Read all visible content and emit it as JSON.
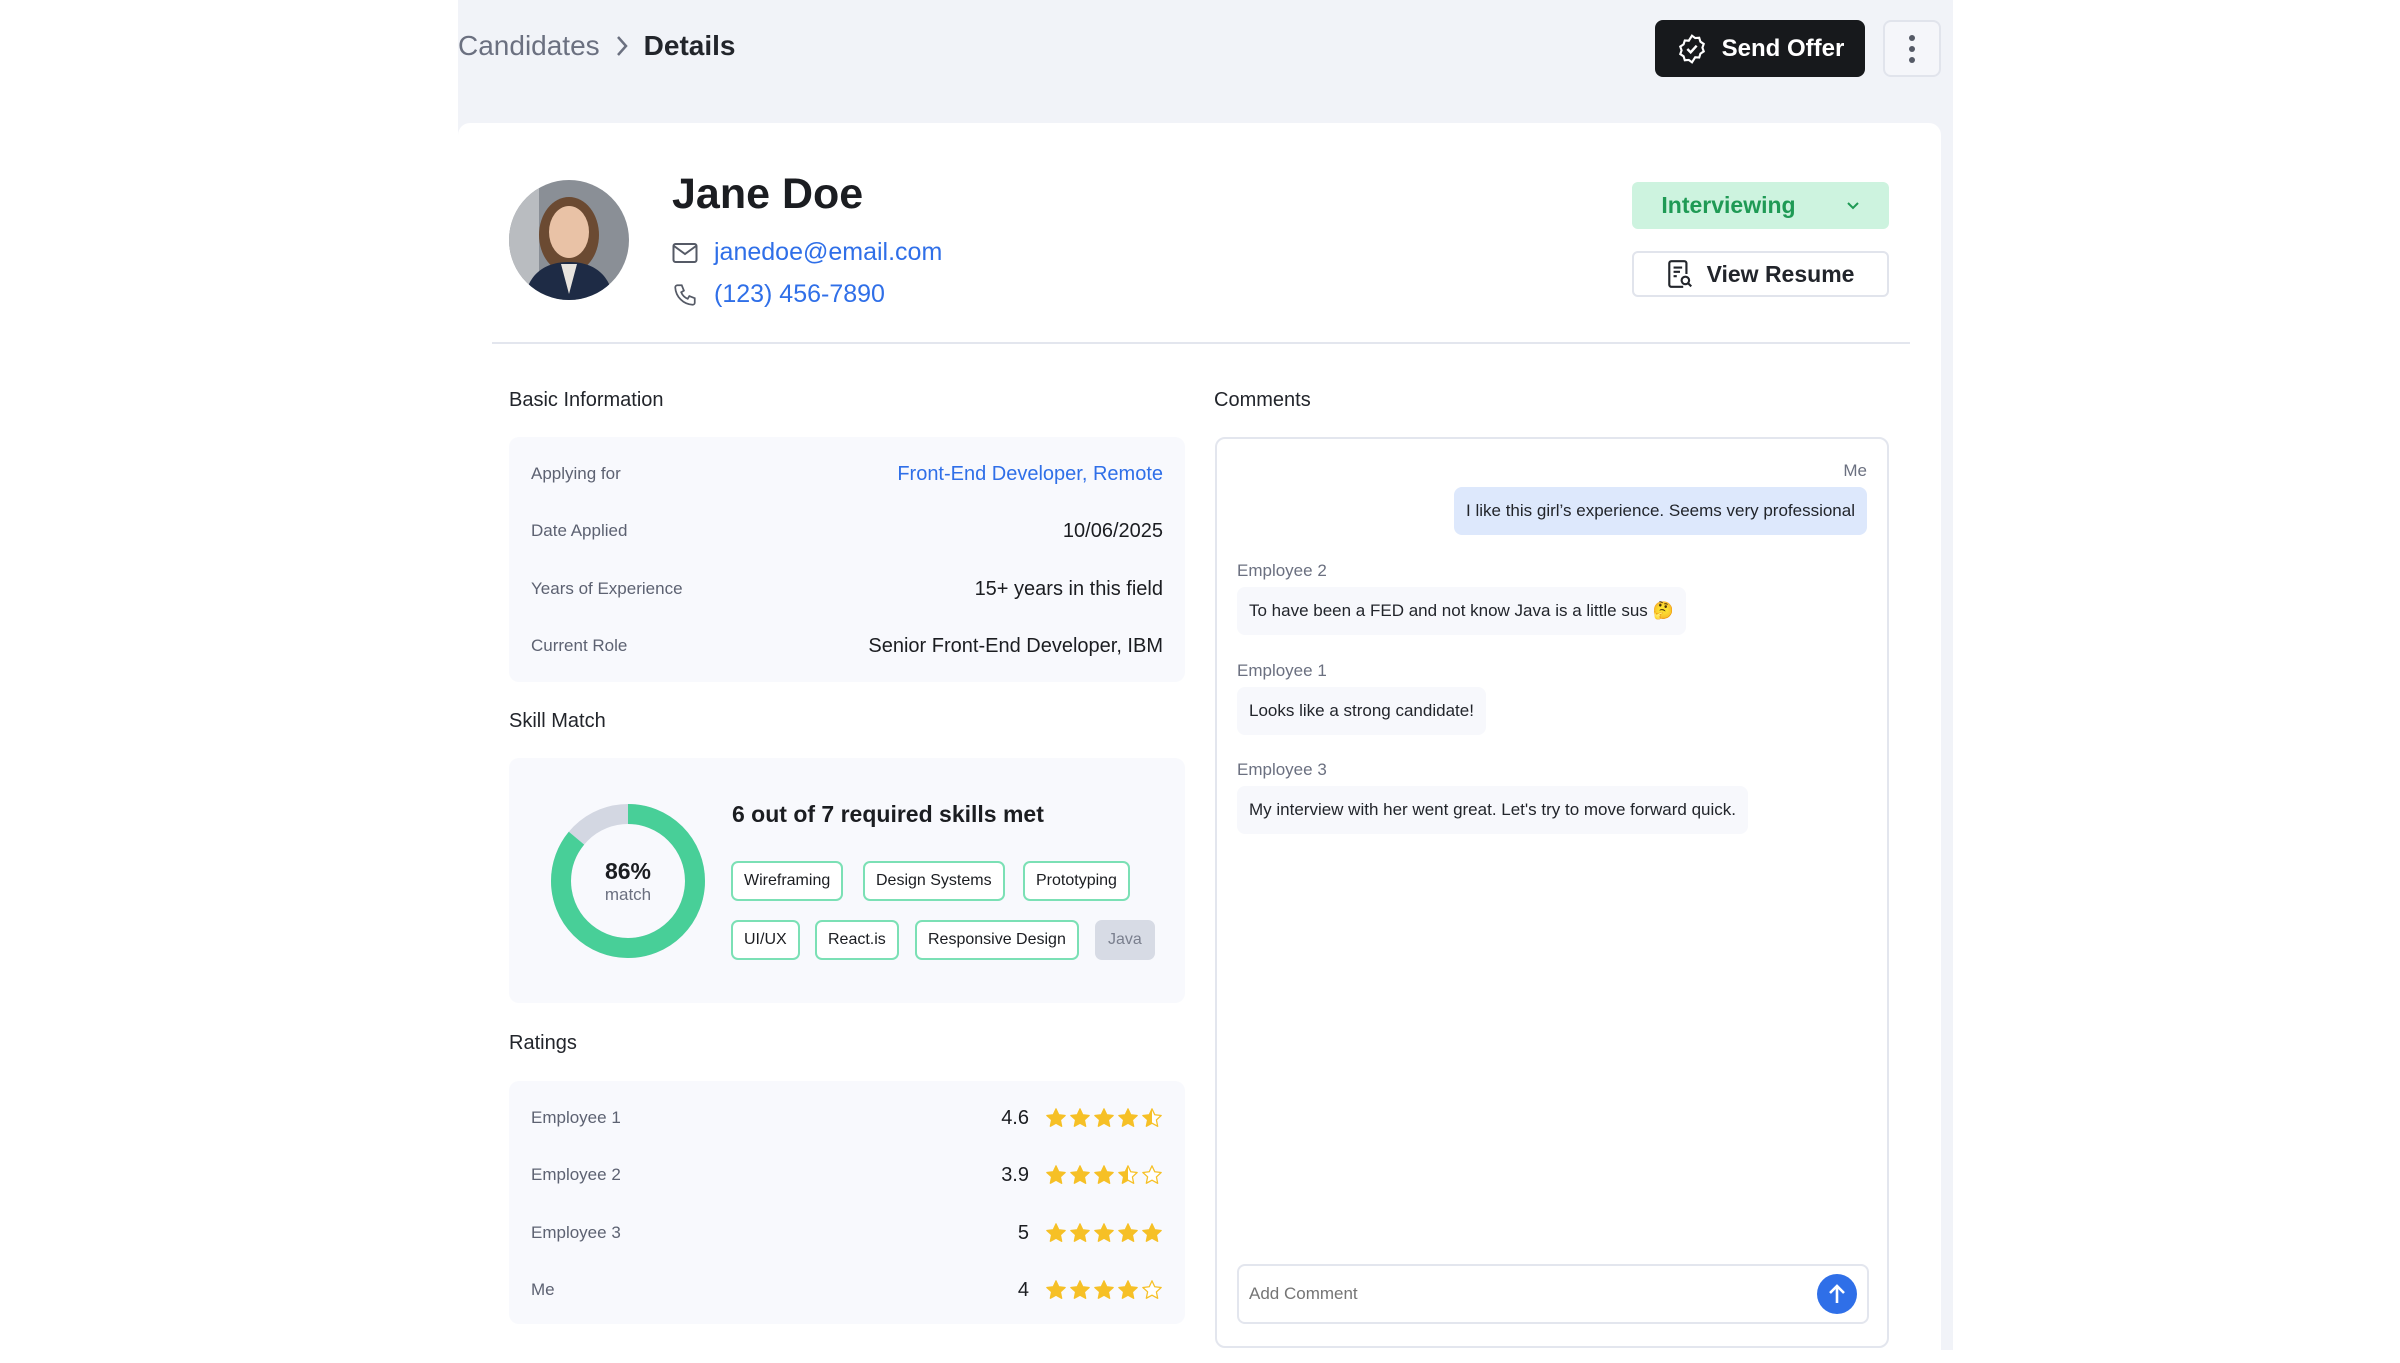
{
  "breadcrumb": {
    "parent": "Candidates",
    "current": "Details"
  },
  "header": {
    "send_offer": "Send Offer",
    "more_icon": "more-vertical-icon"
  },
  "candidate": {
    "name": "Jane Doe",
    "email": "janedoe@email.com",
    "phone": "(123) 456-7890",
    "status": "Interviewing",
    "view_resume": "View Resume"
  },
  "basic_info": {
    "title": "Basic Information",
    "rows": [
      {
        "label": "Applying for",
        "value": "Front-End Developer, Remote"
      },
      {
        "label": "Date Applied",
        "value": "10/06/2025"
      },
      {
        "label": "Years of Experience",
        "value": "15+ years in this field"
      },
      {
        "label": "Current Role",
        "value": "Senior Front-End Developer, IBM"
      }
    ]
  },
  "skill_match": {
    "title": "Skill Match",
    "percent_label": "86%",
    "percent": 86,
    "match_label": "match",
    "summary": "6 out of 7 required skills met",
    "skills": [
      {
        "name": "Wireframing",
        "met": true
      },
      {
        "name": "Design Systems",
        "met": true
      },
      {
        "name": "Prototyping",
        "met": true
      },
      {
        "name": "UI/UX",
        "met": true
      },
      {
        "name": "React.is",
        "met": true
      },
      {
        "name": "Responsive Design",
        "met": true
      },
      {
        "name": "Java",
        "met": false
      }
    ]
  },
  "ratings": {
    "title": "Ratings",
    "rows": [
      {
        "name": "Employee 1",
        "score": "4.6",
        "value": 4.6
      },
      {
        "name": "Employee 2",
        "score": "3.9",
        "value": 3.9
      },
      {
        "name": "Employee 3",
        "score": "5",
        "value": 5
      },
      {
        "name": "Me",
        "score": "4",
        "value": 4
      }
    ]
  },
  "comments": {
    "title": "Comments",
    "items": [
      {
        "author": "Me",
        "text": "I like this girl’s experience. Seems very professional"
      },
      {
        "author": "Employee 2",
        "text": "To have been a FED and not know Java is a little sus 🤔"
      },
      {
        "author": "Employee 1",
        "text": "Looks like a strong candidate!"
      },
      {
        "author": "Employee 3",
        "text": "My interview with her went great. Let's try to move forward quick."
      }
    ],
    "input_placeholder": "Add Comment"
  },
  "colors": {
    "accent_green": "#48cf98",
    "link_blue": "#2f6fe8",
    "star": "#f6c026",
    "send_blue": "#2f6fe8"
  }
}
